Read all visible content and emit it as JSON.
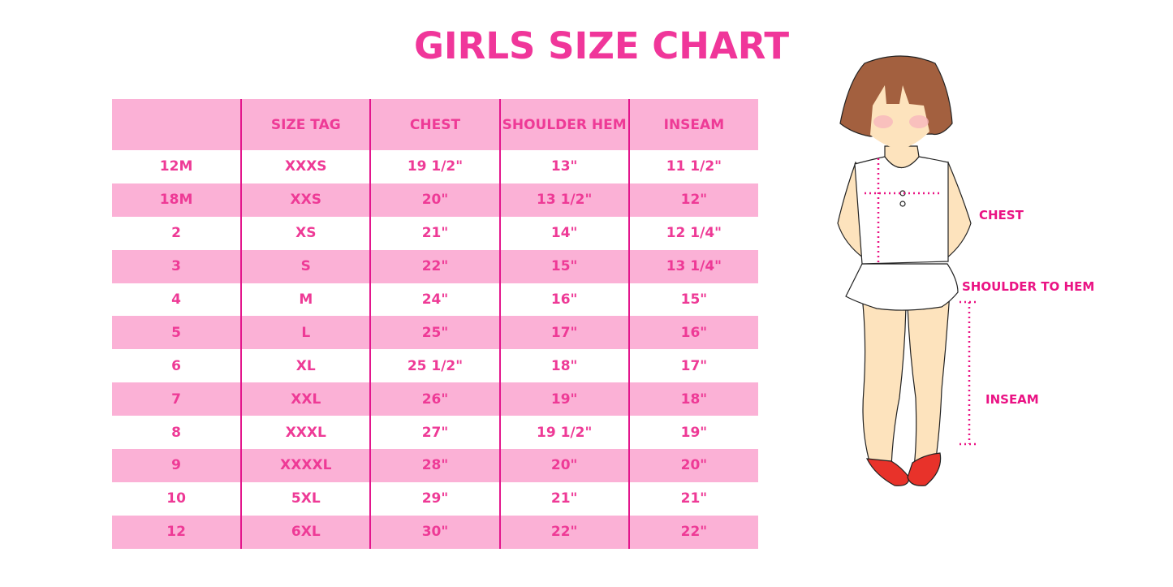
{
  "title": "GIRLS SIZE CHART",
  "colors": {
    "accent": "#ee3a96",
    "row_pink": "#fbb1d6",
    "divider": "#e3168c",
    "measure_line": "#ea1384"
  },
  "table": {
    "headers": [
      "",
      "SIZE TAG",
      "CHEST",
      "SHOULDER HEM",
      "INSEAM"
    ],
    "rows": [
      [
        "12M",
        "XXXS",
        "19 1/2\"",
        "13\"",
        "11 1/2\""
      ],
      [
        "18M",
        "XXS",
        "20\"",
        "13 1/2\"",
        "12\""
      ],
      [
        "2",
        "XS",
        "21\"",
        "14\"",
        "12 1/4\""
      ],
      [
        "3",
        "S",
        "22\"",
        "15\"",
        "13 1/4\""
      ],
      [
        "4",
        "M",
        "24\"",
        "16\"",
        "15\""
      ],
      [
        "5",
        "L",
        "25\"",
        "17\"",
        "16\""
      ],
      [
        "6",
        "XL",
        "25 1/2\"",
        "18\"",
        "17\""
      ],
      [
        "7",
        "XXL",
        "26\"",
        "19\"",
        "18\""
      ],
      [
        "8",
        "XXXL",
        "27\"",
        "19 1/2\"",
        "19\""
      ],
      [
        "9",
        "XXXXL",
        "28\"",
        "20\"",
        "20\""
      ],
      [
        "10",
        "5XL",
        "29\"",
        "21\"",
        "21\""
      ],
      [
        "12",
        "6XL",
        "30\"",
        "22\"",
        "22\""
      ]
    ]
  },
  "figure": {
    "labels": {
      "chest": "CHEST",
      "shoulder_to_hem": "SHOULDER TO HEM",
      "inseam": "INSEAM"
    }
  }
}
